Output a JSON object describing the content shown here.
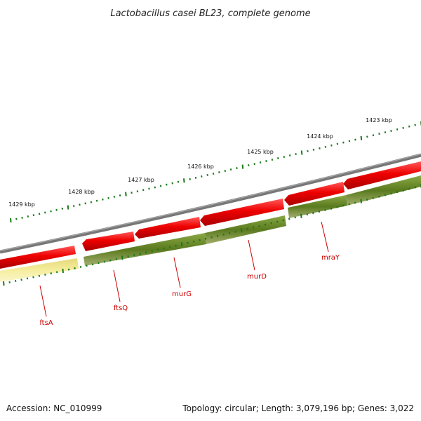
{
  "title": "Lactobacillus casei BL23, complete genome",
  "footer": {
    "accession": "Accession: NC_010999",
    "summary": "Topology: circular; Length: 3,079,196 bp; Genes: 3,022"
  },
  "colors": {
    "backbone": "#7a7a7a",
    "forward_gene": "#ee0000",
    "reverse_gene": "#5a7a1e",
    "reverse_gene_light": "#f2e896",
    "tick": "#1a7a1a",
    "gene_label": "#cc0000"
  },
  "scale_labels": [
    {
      "label": "1423 kbp",
      "kbp": 1423
    },
    {
      "label": "1424 kbp",
      "kbp": 1424
    },
    {
      "label": "1425 kbp",
      "kbp": 1425
    },
    {
      "label": "1426 kbp",
      "kbp": 1426
    },
    {
      "label": "1427 kbp",
      "kbp": 1427
    },
    {
      "label": "1428 kbp",
      "kbp": 1428
    },
    {
      "label": "1429 kbp",
      "kbp": 1429
    }
  ],
  "gene_labels": [
    {
      "label": "ftsA"
    },
    {
      "label": "ftsQ"
    },
    {
      "label": "murG"
    },
    {
      "label": "murD"
    },
    {
      "label": "mraY"
    }
  ]
}
